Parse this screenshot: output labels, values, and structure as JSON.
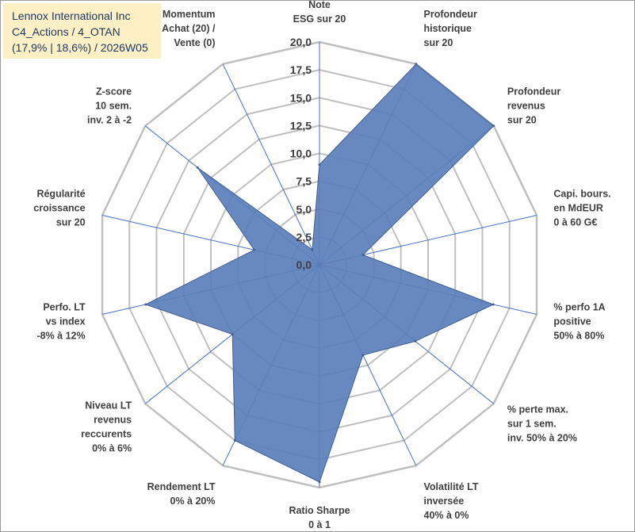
{
  "chart_data": {
    "type": "radar",
    "title_lines": [
      "Lennox International Inc",
      "C4_Actions / 4_OTAN",
      "(17,9% | 18,6%) / 2026W05"
    ],
    "rmin": 0,
    "rmax": 20,
    "tick_values": [
      0,
      2.5,
      5,
      7.5,
      10,
      12.5,
      15,
      17.5,
      20
    ],
    "tick_labels": [
      "0,0",
      "2,5",
      "5,0",
      "7,5",
      "10,0",
      "12,5",
      "15,0",
      "17,5",
      "20,0"
    ],
    "axes": [
      {
        "name": "note-esg",
        "label": [
          "Note",
          "ESG sur 20"
        ],
        "value": 9.0
      },
      {
        "name": "profondeur-historique",
        "label": [
          "Profondeur",
          "historique",
          "sur 20"
        ],
        "value": 20.0
      },
      {
        "name": "profondeur-revenus",
        "label": [
          "Profondeur",
          "revenus",
          "sur 20"
        ],
        "value": 20.0
      },
      {
        "name": "capi-bours",
        "label": [
          "Capi. bours.",
          "en MdEUR",
          "0 à 60 G€"
        ],
        "value": 4.0
      },
      {
        "name": "perfo-1a",
        "label": [
          "% perfo 1A",
          "positive",
          "50% à 80%"
        ],
        "value": 16.0
      },
      {
        "name": "perte-max",
        "label": [
          "% perte max.",
          "sur 1 sem.",
          "inv. 50% à 20%"
        ],
        "value": 11.0
      },
      {
        "name": "volatilite-lt",
        "label": [
          "Volatilité LT",
          "inversée",
          "40% à 0%"
        ],
        "value": 9.0
      },
      {
        "name": "ratio-sharpe",
        "label": [
          "Ratio Sharpe",
          "0 à 1"
        ],
        "value": 19.5
      },
      {
        "name": "rendement-lt",
        "label": [
          "Rendement LT",
          "0% à 20%"
        ],
        "value": 17.5
      },
      {
        "name": "niveau-lt-revenus",
        "label": [
          "Niveau LT",
          "revenus",
          "reccurents",
          "0% à 6%"
        ],
        "value": 10.0
      },
      {
        "name": "perfo-lt-vs-index",
        "label": [
          "Perfo. LT",
          "vs index",
          "-8% à 12%"
        ],
        "value": 16.0
      },
      {
        "name": "regularite-croissance",
        "label": [
          "Régularité",
          "croissance",
          "sur 20"
        ],
        "value": 6.0
      },
      {
        "name": "z-score",
        "label": [
          "Z-score",
          "10 sem.",
          "inv. 2 à -2"
        ],
        "value": 14.0
      },
      {
        "name": "momentum",
        "label": [
          "Momentum",
          "Achat (20) /",
          "Vente (0)"
        ],
        "value": 1.5
      }
    ],
    "colors": {
      "fill": "#5b7fba",
      "stroke": "#3f5f96",
      "grid": "#bfbfbf",
      "spoke": "#4472c4",
      "title_bg": "#fdf0c4",
      "title_text": "#1f3864",
      "label_text": "#404040"
    }
  }
}
